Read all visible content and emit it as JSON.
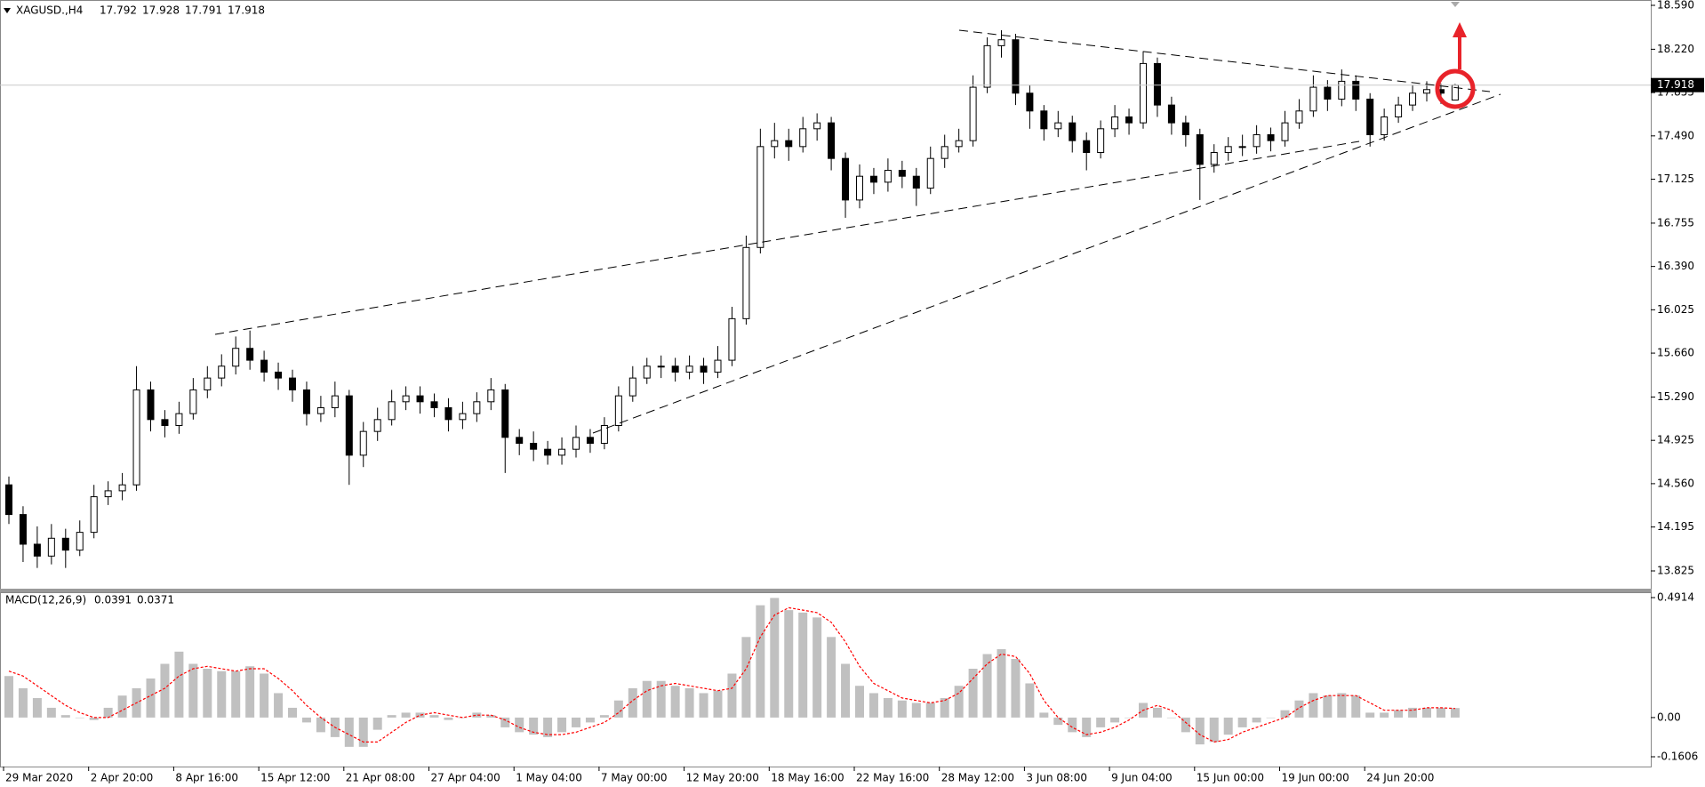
{
  "chart_data": [
    {
      "type": "candlestick",
      "title": "XAGUSD.,H4",
      "up_color": "#ffffff",
      "down_color": "#000000",
      "price_line_color": "#c8c8c8",
      "categories": [
        "29 Mar 2020",
        null,
        null,
        null,
        null,
        null,
        "2 Apr 20:00",
        null,
        null,
        null,
        null,
        null,
        "8 Apr 16:00",
        null,
        null,
        null,
        null,
        null,
        "15 Apr 12:00",
        null,
        null,
        null,
        null,
        null,
        "21 Apr 08:00",
        null,
        null,
        null,
        null,
        null,
        "27 Apr 04:00",
        null,
        null,
        null,
        null,
        null,
        "1 May 04:00",
        null,
        null,
        null,
        null,
        null,
        "7 May 00:00",
        null,
        null,
        null,
        null,
        null,
        "12 May 20:00",
        null,
        null,
        null,
        null,
        null,
        "18 May 16:00",
        null,
        null,
        null,
        null,
        null,
        "22 May 16:00",
        null,
        null,
        null,
        null,
        null,
        "28 May 12:00",
        null,
        null,
        null,
        null,
        null,
        "3 Jun 08:00",
        null,
        null,
        null,
        null,
        null,
        "9 Jun 04:00",
        null,
        null,
        null,
        null,
        null,
        "15 Jun 00:00",
        null,
        null,
        null,
        null,
        null,
        "19 Jun 00:00",
        null,
        null,
        null,
        null,
        null,
        "24 Jun 20:00",
        null,
        null,
        null,
        null,
        null,
        null
      ],
      "open": [
        14.55,
        14.3,
        14.05,
        13.95,
        14.1,
        14.0,
        14.15,
        14.45,
        14.5,
        14.55,
        15.35,
        15.1,
        15.05,
        15.15,
        15.35,
        15.45,
        15.55,
        15.7,
        15.6,
        15.5,
        15.45,
        15.35,
        15.15,
        15.2,
        15.3,
        14.8,
        15.0,
        15.1,
        15.25,
        15.3,
        15.25,
        15.2,
        15.1,
        15.15,
        15.25,
        15.35,
        14.95,
        14.9,
        14.85,
        14.8,
        14.85,
        14.95,
        14.9,
        15.05,
        15.3,
        15.45,
        15.55,
        15.55,
        15.5,
        15.55,
        15.5,
        15.6,
        15.95,
        16.55,
        17.4,
        17.45,
        17.4,
        17.55,
        17.6,
        17.3,
        16.95,
        17.15,
        17.1,
        17.2,
        17.15,
        17.05,
        17.3,
        17.4,
        17.45,
        17.9,
        18.25,
        18.3,
        17.85,
        17.7,
        17.55,
        17.6,
        17.45,
        17.35,
        17.55,
        17.65,
        17.6,
        18.1,
        17.75,
        17.6,
        17.5,
        17.25,
        17.35,
        17.4,
        17.4,
        17.5,
        17.45,
        17.6,
        17.7,
        17.9,
        17.8,
        17.95,
        17.8,
        17.5,
        17.65,
        17.75,
        17.85,
        17.88,
        17.792
      ],
      "high": [
        14.62,
        14.37,
        14.2,
        14.22,
        14.18,
        14.25,
        14.55,
        14.58,
        14.65,
        15.55,
        15.42,
        15.18,
        15.25,
        15.45,
        15.55,
        15.65,
        15.8,
        15.85,
        15.68,
        15.58,
        15.52,
        15.42,
        15.3,
        15.42,
        15.35,
        15.08,
        15.2,
        15.35,
        15.38,
        15.38,
        15.32,
        15.28,
        15.25,
        15.33,
        15.45,
        15.4,
        15.02,
        15.0,
        14.92,
        14.95,
        15.05,
        15.02,
        15.12,
        15.38,
        15.55,
        15.62,
        15.64,
        15.62,
        15.64,
        15.62,
        15.72,
        16.05,
        16.65,
        17.55,
        17.6,
        17.55,
        17.65,
        17.68,
        17.65,
        17.35,
        17.25,
        17.22,
        17.3,
        17.28,
        17.22,
        17.4,
        17.5,
        17.55,
        18.0,
        18.32,
        18.38,
        18.35,
        17.92,
        17.75,
        17.7,
        17.66,
        17.52,
        17.62,
        17.75,
        17.72,
        18.2,
        18.15,
        17.82,
        17.66,
        17.55,
        17.42,
        17.48,
        17.5,
        17.58,
        17.56,
        17.7,
        17.8,
        18.0,
        17.96,
        18.05,
        18.0,
        17.85,
        17.72,
        17.82,
        17.92,
        17.95,
        17.93,
        17.928
      ],
      "low": [
        14.22,
        13.9,
        13.85,
        13.88,
        13.85,
        13.95,
        14.1,
        14.38,
        14.42,
        14.5,
        15.0,
        14.95,
        14.98,
        15.1,
        15.28,
        15.38,
        15.48,
        15.52,
        15.42,
        15.35,
        15.25,
        15.05,
        15.08,
        15.12,
        14.55,
        14.7,
        14.92,
        15.05,
        15.18,
        15.15,
        15.12,
        15.0,
        15.02,
        15.08,
        15.18,
        14.65,
        14.8,
        14.75,
        14.72,
        14.72,
        14.78,
        14.82,
        14.85,
        15.0,
        15.25,
        15.4,
        15.45,
        15.42,
        15.44,
        15.4,
        15.45,
        15.55,
        15.9,
        16.5,
        17.3,
        17.28,
        17.35,
        17.45,
        17.2,
        16.8,
        16.88,
        17.0,
        17.02,
        17.05,
        16.9,
        17.0,
        17.22,
        17.35,
        17.4,
        17.85,
        18.15,
        17.75,
        17.55,
        17.45,
        17.48,
        17.35,
        17.2,
        17.3,
        17.48,
        17.5,
        17.55,
        17.65,
        17.5,
        17.4,
        16.95,
        17.18,
        17.28,
        17.32,
        17.34,
        17.36,
        17.4,
        17.55,
        17.65,
        17.7,
        17.74,
        17.7,
        17.4,
        17.45,
        17.6,
        17.7,
        17.78,
        17.76,
        17.791
      ],
      "close": [
        14.3,
        14.05,
        13.95,
        14.1,
        14.0,
        14.15,
        14.45,
        14.5,
        14.55,
        15.35,
        15.1,
        15.05,
        15.15,
        15.35,
        15.45,
        15.55,
        15.7,
        15.6,
        15.5,
        15.45,
        15.35,
        15.15,
        15.2,
        15.3,
        14.8,
        15.0,
        15.1,
        15.25,
        15.3,
        15.25,
        15.2,
        15.1,
        15.15,
        15.25,
        15.35,
        14.95,
        14.9,
        14.85,
        14.8,
        14.85,
        14.95,
        14.9,
        15.05,
        15.3,
        15.45,
        15.55,
        15.55,
        15.5,
        15.55,
        15.5,
        15.6,
        15.95,
        16.55,
        17.4,
        17.45,
        17.4,
        17.55,
        17.6,
        17.3,
        16.95,
        17.15,
        17.1,
        17.2,
        17.15,
        17.05,
        17.3,
        17.4,
        17.45,
        17.9,
        18.25,
        18.3,
        17.85,
        17.7,
        17.55,
        17.6,
        17.45,
        17.35,
        17.55,
        17.65,
        17.6,
        18.1,
        17.75,
        17.6,
        17.5,
        17.25,
        17.35,
        17.4,
        17.4,
        17.5,
        17.45,
        17.6,
        17.7,
        17.9,
        17.8,
        17.95,
        17.8,
        17.5,
        17.65,
        17.75,
        17.85,
        17.88,
        17.85,
        17.918
      ],
      "ylim": [
        13.825,
        18.59
      ],
      "yticks": [
        {
          "value": 18.59,
          "label": "18.590"
        },
        {
          "value": 18.22,
          "label": "18.220"
        },
        17.855,
        {
          "value": 17.49,
          "label": "17.490"
        },
        17.125,
        16.755,
        {
          "value": 16.39,
          "label": "16.390"
        },
        16.025,
        {
          "value": 15.66,
          "label": "15.660"
        },
        {
          "value": 15.29,
          "label": "15.290"
        },
        14.925,
        {
          "value": 14.56,
          "label": "14.560"
        },
        14.195,
        13.825
      ]
    },
    {
      "type": "macd",
      "title": "MACD(12,26,9)",
      "color": "#c0c0c0",
      "signal_color": "#ff0000",
      "values": [
        0.17,
        0.12,
        0.08,
        0.04,
        0.01,
        0.0,
        -0.01,
        0.04,
        0.09,
        0.12,
        0.16,
        0.22,
        0.27,
        0.22,
        0.2,
        0.19,
        0.19,
        0.21,
        0.18,
        0.1,
        0.04,
        -0.02,
        -0.06,
        -0.08,
        -0.12,
        -0.12,
        -0.05,
        0.01,
        0.02,
        0.02,
        0.01,
        -0.01,
        0.0,
        0.02,
        0.01,
        -0.04,
        -0.06,
        -0.07,
        -0.08,
        -0.06,
        -0.04,
        -0.02,
        0.01,
        0.07,
        0.12,
        0.15,
        0.15,
        0.13,
        0.12,
        0.1,
        0.11,
        0.18,
        0.33,
        0.46,
        0.49,
        0.44,
        0.43,
        0.41,
        0.33,
        0.22,
        0.13,
        0.1,
        0.08,
        0.07,
        0.06,
        0.06,
        0.08,
        0.13,
        0.2,
        0.26,
        0.28,
        0.24,
        0.14,
        0.02,
        -0.03,
        -0.06,
        -0.08,
        -0.04,
        -0.02,
        0.0,
        0.06,
        0.04,
        0.0,
        -0.06,
        -0.11,
        -0.1,
        -0.07,
        -0.04,
        -0.02,
        0.0,
        0.03,
        0.07,
        0.1,
        0.09,
        0.1,
        0.09,
        0.02,
        0.02,
        0.03,
        0.04,
        0.04,
        0.04,
        0.0391
      ],
      "signal": [
        0.19,
        0.17,
        0.13,
        0.09,
        0.05,
        0.02,
        0.0,
        0.0,
        0.03,
        0.06,
        0.09,
        0.12,
        0.17,
        0.2,
        0.21,
        0.2,
        0.19,
        0.2,
        0.2,
        0.16,
        0.11,
        0.05,
        0.0,
        -0.04,
        -0.07,
        -0.1,
        -0.1,
        -0.06,
        -0.02,
        0.01,
        0.02,
        0.01,
        0.0,
        0.01,
        0.01,
        -0.01,
        -0.04,
        -0.06,
        -0.07,
        -0.07,
        -0.06,
        -0.04,
        -0.02,
        0.02,
        0.07,
        0.11,
        0.13,
        0.14,
        0.13,
        0.12,
        0.11,
        0.12,
        0.2,
        0.33,
        0.42,
        0.45,
        0.44,
        0.43,
        0.39,
        0.31,
        0.21,
        0.14,
        0.11,
        0.08,
        0.07,
        0.06,
        0.07,
        0.1,
        0.16,
        0.22,
        0.26,
        0.25,
        0.18,
        0.07,
        0.0,
        -0.04,
        -0.07,
        -0.06,
        -0.04,
        -0.01,
        0.03,
        0.05,
        0.03,
        -0.02,
        -0.07,
        -0.1,
        -0.09,
        -0.06,
        -0.04,
        -0.02,
        0.0,
        0.04,
        0.07,
        0.09,
        0.09,
        0.09,
        0.06,
        0.03,
        0.03,
        0.03,
        0.04,
        0.04,
        0.0371
      ],
      "ylim": [
        -0.1606,
        0.4914
      ],
      "yticks": [
        0.4914,
        {
          "value": 0,
          "label": "0.00"
        },
        -0.1606
      ]
    }
  ]
}
